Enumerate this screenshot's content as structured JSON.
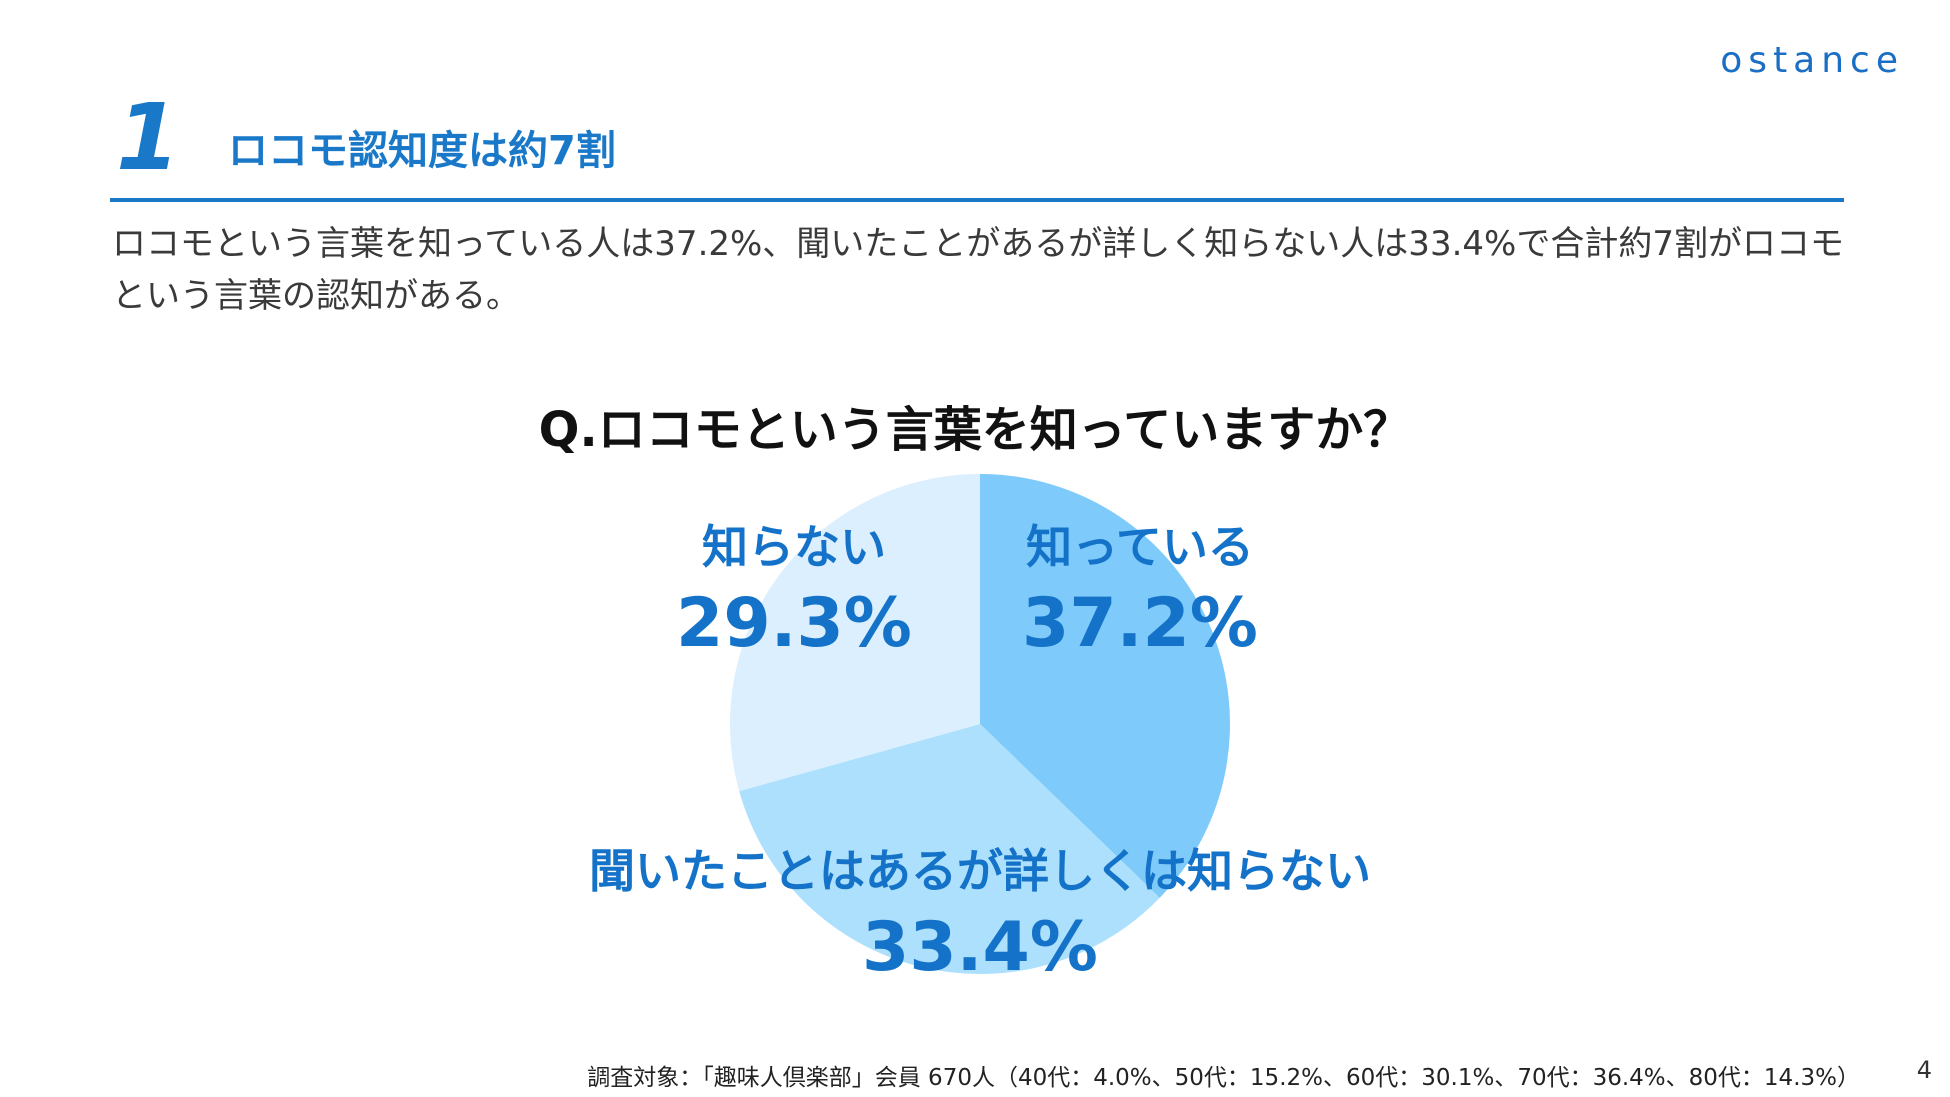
{
  "brand": {
    "logo": "ostance"
  },
  "header": {
    "number": "1",
    "title": "ロコモ認知度は約7割"
  },
  "summary": "ロコモという言葉を知っている人は37.2%、聞いたことがあるが詳しく知らない人は33.4%で合計約7割がロコモという言葉の認知がある。",
  "chart_data": {
    "type": "pie",
    "title": "Q.ロコモという言葉を知っていますか？",
    "slices": [
      {
        "label": "知っている",
        "value": 37.2,
        "value_label": "37.2%",
        "color": "#7ecbfb"
      },
      {
        "label": "聞いたことはあるが詳しくは知らない",
        "value": 33.4,
        "value_label": "33.4%",
        "color": "#ade0fc"
      },
      {
        "label": "知らない",
        "value": 29.3,
        "value_label": "29.3%",
        "color": "#dcefff"
      }
    ],
    "start": "12 o'clock",
    "direction": "clockwise"
  },
  "footnote": "調査対象：「趣味人倶楽部」会員 670人（40代：4.0%、50代：15.2%、60代：30.1%、70代：36.4%、80代：14.3%）",
  "page_number": "4"
}
